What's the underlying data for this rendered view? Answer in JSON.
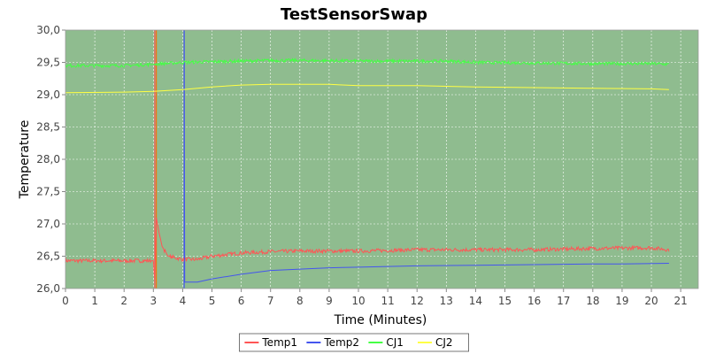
{
  "chart_data": {
    "type": "line",
    "title": "TestSensorSwap",
    "xlabel": "Time (Minutes)",
    "ylabel": "Temperature",
    "xlim": [
      0,
      21.6
    ],
    "ylim": [
      26.0,
      30.0
    ],
    "x_ticks": [
      "0",
      "1",
      "2",
      "3",
      "4",
      "5",
      "6",
      "7",
      "8",
      "9",
      "10",
      "11",
      "12",
      "13",
      "14",
      "15",
      "16",
      "17",
      "18",
      "19",
      "20",
      "21"
    ],
    "y_ticks": [
      "26,0",
      "26,5",
      "27,0",
      "27,5",
      "28,0",
      "28,5",
      "29,0",
      "29,5",
      "30,0"
    ],
    "grid": true,
    "plot_background": "#8fbc8f",
    "legend_position": "bottom-center",
    "series": [
      {
        "name": "Temp1",
        "color": "#ff5555",
        "noise": 0.03,
        "points": [
          [
            0,
            26.43
          ],
          [
            3.0,
            26.43
          ],
          [
            3.05,
            26.1
          ],
          [
            3.1,
            27.1
          ],
          [
            3.2,
            26.85
          ],
          [
            3.3,
            26.65
          ],
          [
            3.5,
            26.5
          ],
          [
            4.0,
            26.45
          ],
          [
            4.5,
            26.45
          ],
          [
            5.0,
            26.5
          ],
          [
            6.0,
            26.55
          ],
          [
            7.0,
            26.57
          ],
          [
            8.0,
            26.58
          ],
          [
            10.0,
            26.58
          ],
          [
            12.0,
            26.6
          ],
          [
            14.0,
            26.6
          ],
          [
            16.0,
            26.6
          ],
          [
            18.0,
            26.62
          ],
          [
            20.0,
            26.63
          ],
          [
            20.6,
            26.6
          ]
        ]
      },
      {
        "name": "Temp2",
        "color": "#4455ee",
        "noise": 0,
        "points": [
          [
            4.05,
            30.0
          ],
          [
            4.07,
            26.1
          ],
          [
            4.5,
            26.1
          ],
          [
            5.0,
            26.15
          ],
          [
            6.0,
            26.22
          ],
          [
            7.0,
            26.28
          ],
          [
            8.0,
            26.3
          ],
          [
            9.0,
            26.32
          ],
          [
            10.0,
            26.33
          ],
          [
            12.0,
            26.35
          ],
          [
            14.0,
            26.36
          ],
          [
            16.0,
            26.37
          ],
          [
            18.0,
            26.38
          ],
          [
            19.0,
            26.38
          ],
          [
            20.6,
            26.39
          ]
        ]
      },
      {
        "name": "CJ1",
        "color": "#44ff44",
        "noise": 0.025,
        "points": [
          [
            0,
            29.45
          ],
          [
            2.0,
            29.45
          ],
          [
            3.0,
            29.47
          ],
          [
            4.0,
            29.5
          ],
          [
            6.0,
            29.52
          ],
          [
            7.0,
            29.53
          ],
          [
            8.0,
            29.53
          ],
          [
            10.0,
            29.52
          ],
          [
            12.0,
            29.52
          ],
          [
            13.0,
            29.52
          ],
          [
            14.0,
            29.5
          ],
          [
            16.0,
            29.49
          ],
          [
            18.0,
            29.48
          ],
          [
            20.0,
            29.48
          ],
          [
            20.6,
            29.47
          ]
        ]
      },
      {
        "name": "CJ2",
        "color": "#ffff44",
        "noise": 0,
        "points": [
          [
            0,
            29.03
          ],
          [
            2.0,
            29.04
          ],
          [
            3.0,
            29.05
          ],
          [
            4.0,
            29.08
          ],
          [
            5.0,
            29.12
          ],
          [
            6.0,
            29.15
          ],
          [
            7.0,
            29.16
          ],
          [
            9.0,
            29.16
          ],
          [
            10.0,
            29.14
          ],
          [
            12.0,
            29.14
          ],
          [
            13.0,
            29.13
          ],
          [
            14.0,
            29.12
          ],
          [
            16.0,
            29.11
          ],
          [
            18.0,
            29.1
          ],
          [
            20.0,
            29.09
          ],
          [
            20.6,
            29.08
          ]
        ]
      }
    ],
    "annotations": [
      {
        "x": 3.05,
        "color": "#ff5555"
      },
      {
        "x": 3.1,
        "color": "#ee7711"
      },
      {
        "x": 4.05,
        "color": "#4455ee"
      }
    ]
  }
}
